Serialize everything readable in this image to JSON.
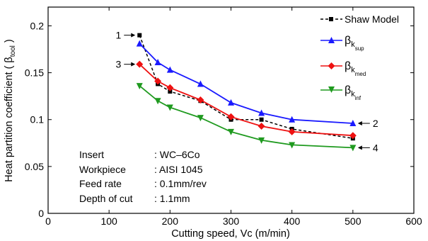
{
  "chart_data": {
    "type": "line",
    "xlabel": "Cutting speed, Vc (m/min)",
    "ylabel_main": "Heat partition coefficient ( β",
    "ylabel_sub": "tool",
    "ylabel_end": " )",
    "xlim": [
      0,
      600
    ],
    "ylim": [
      0,
      0.22
    ],
    "xticks": [
      0,
      100,
      200,
      300,
      400,
      500,
      600
    ],
    "yticks": [
      0,
      0.05,
      0.1,
      0.15,
      0.2
    ],
    "xtick_labels": [
      "0",
      "100",
      "200",
      "300",
      "400",
      "500",
      "600"
    ],
    "ytick_labels": [
      "0",
      "0.05",
      "0.1",
      "0.15",
      "0.2"
    ],
    "grid": false,
    "legend_position": "top-right",
    "series": [
      {
        "name": "Shaw Model",
        "legend_main": "Shaw Model",
        "legend_sub": "",
        "color": "#000000",
        "marker": "square",
        "dashed": true,
        "x": [
          150,
          180,
          200,
          250,
          300,
          350,
          400,
          500
        ],
        "y": [
          0.19,
          0.138,
          0.13,
          0.12,
          0.1,
          0.1,
          0.09,
          0.08
        ]
      },
      {
        "name": "βk sup",
        "legend_main": "β",
        "legend_sub": "k",
        "legend_subsub": "sup",
        "color": "#1a1aff",
        "marker": "triangle-up",
        "dashed": false,
        "x": [
          150,
          180,
          200,
          250,
          300,
          350,
          400,
          500
        ],
        "y": [
          0.181,
          0.161,
          0.153,
          0.138,
          0.118,
          0.107,
          0.1,
          0.096
        ]
      },
      {
        "name": "βk med",
        "legend_main": "β",
        "legend_sub": "k",
        "legend_subsub": "med",
        "color": "#ee1111",
        "marker": "diamond",
        "dashed": false,
        "x": [
          150,
          180,
          200,
          250,
          300,
          350,
          400,
          500
        ],
        "y": [
          0.159,
          0.141,
          0.134,
          0.121,
          0.103,
          0.093,
          0.087,
          0.083
        ]
      },
      {
        "name": "βk inf",
        "legend_main": "β",
        "legend_sub": "k",
        "legend_subsub": "inf",
        "color": "#1f9a1f",
        "marker": "triangle-down",
        "dashed": false,
        "x": [
          150,
          180,
          200,
          250,
          300,
          350,
          400,
          500
        ],
        "y": [
          0.136,
          0.12,
          0.113,
          0.102,
          0.087,
          0.078,
          0.073,
          0.07
        ]
      }
    ],
    "callouts": [
      {
        "label": "1",
        "x": 150,
        "y": 0.19,
        "side": "left"
      },
      {
        "label": "3",
        "x": 150,
        "y": 0.159,
        "side": "left"
      },
      {
        "label": "2",
        "x": 500,
        "y": 0.096,
        "side": "right"
      },
      {
        "label": "4",
        "x": 500,
        "y": 0.07,
        "side": "right"
      }
    ],
    "annotation": [
      {
        "key": "Insert",
        "value": ": WC–6Co"
      },
      {
        "key": "Workpiece",
        "value": ": AISI 1045"
      },
      {
        "key": "Feed rate",
        "value": ": 0.1mm/rev"
      },
      {
        "key": "Depth of cut",
        "value": ": 1.1mm"
      }
    ]
  }
}
